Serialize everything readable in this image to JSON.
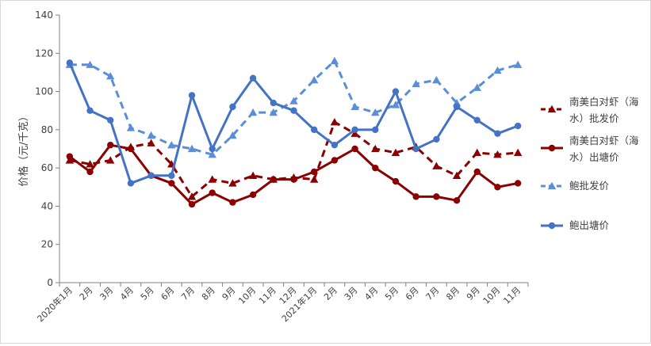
{
  "chart_data": {
    "type": "line",
    "title": "",
    "xlabel": "",
    "ylabel": "价格（元/千克）",
    "ylim": [
      0,
      140
    ],
    "yticks": [
      0,
      20,
      40,
      60,
      80,
      100,
      120,
      140
    ],
    "grid": false,
    "legend_position": "right",
    "categories": [
      "2020年1月",
      "2月",
      "3月",
      "4月",
      "5月",
      "6月",
      "7月",
      "8月",
      "9月",
      "10月",
      "11月",
      "12月",
      "2021年1月",
      "2月",
      "3月",
      "4月",
      "5月",
      "6月",
      "7月",
      "8月",
      "9月",
      "10月",
      "11月"
    ],
    "series": [
      {
        "name": "南美白对虾（海水）批发价",
        "legend_lines": [
          "南美白对虾（海",
          "水）批发价"
        ],
        "color": "#8b0000",
        "line_style": "dashed",
        "marker": "triangle",
        "values": [
          64,
          62,
          64,
          71,
          73,
          62,
          45,
          54,
          52,
          56,
          54,
          55,
          54,
          84,
          78,
          70,
          68,
          71,
          61,
          56,
          68,
          67,
          68
        ]
      },
      {
        "name": "南美白对虾（海水）出塘价",
        "legend_lines": [
          "南美白对虾（海",
          "水）出塘价"
        ],
        "color": "#8b0000",
        "line_style": "solid",
        "marker": "circle",
        "values": [
          66,
          58,
          72,
          70,
          56,
          52,
          41,
          47,
          42,
          46,
          54,
          54,
          58,
          64,
          70,
          60,
          53,
          45,
          45,
          43,
          58,
          50,
          52
        ]
      },
      {
        "name": "鲍批发价",
        "legend_lines": [
          "鲍批发价"
        ],
        "color": "#5b8ed6",
        "line_style": "dashed",
        "marker": "triangle",
        "values": [
          114,
          114,
          108,
          81,
          77,
          72,
          70,
          67,
          77,
          89,
          89,
          95,
          106,
          116,
          92,
          89,
          93,
          104,
          106,
          94,
          102,
          111,
          114
        ]
      },
      {
        "name": "鲍出塘价",
        "legend_lines": [
          "鲍出塘价"
        ],
        "color": "#4472c4",
        "line_style": "solid",
        "marker": "circle",
        "values": [
          115,
          90,
          85,
          52,
          56,
          56,
          98,
          70,
          92,
          107,
          94,
          90,
          80,
          72,
          80,
          80,
          100,
          70,
          75,
          92,
          85,
          78,
          82
        ]
      }
    ]
  }
}
